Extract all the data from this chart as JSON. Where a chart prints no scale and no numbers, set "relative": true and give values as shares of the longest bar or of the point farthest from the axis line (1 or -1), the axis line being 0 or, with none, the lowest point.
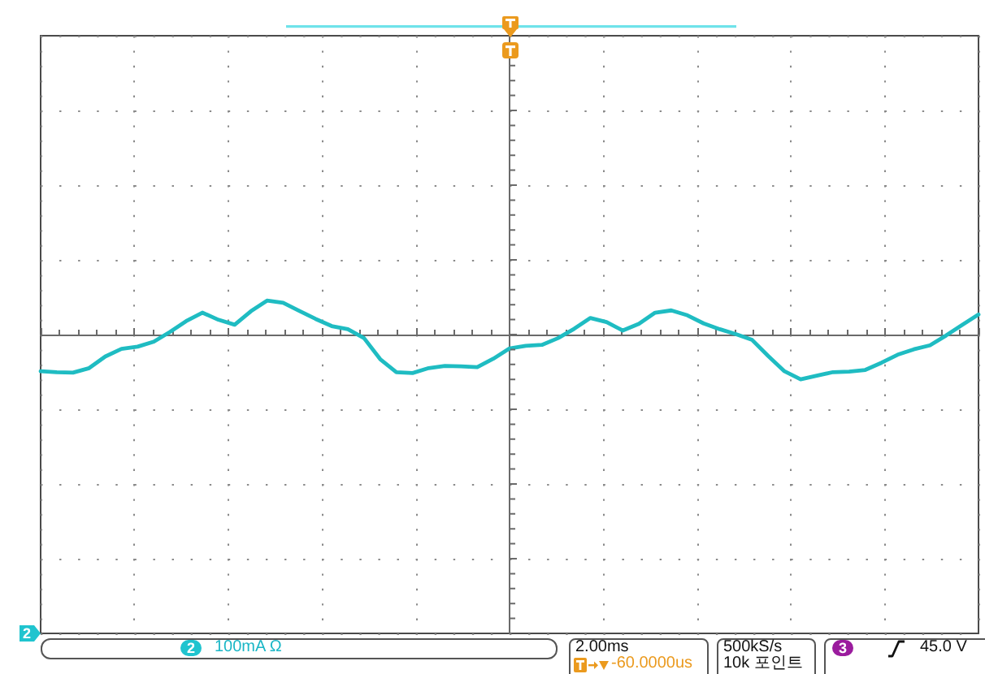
{
  "chart_data": {
    "type": "line",
    "relative": true,
    "categories": [
      null,
      null,
      null,
      null,
      null,
      null,
      null,
      null,
      null,
      null,
      null,
      null,
      null,
      null,
      null,
      null,
      null,
      null,
      null,
      null,
      null,
      null,
      null,
      null,
      null,
      null,
      null,
      null,
      null,
      null,
      null,
      null,
      null,
      null,
      null,
      null,
      null,
      null,
      null,
      null,
      null,
      null,
      null,
      null,
      null,
      null,
      null,
      null,
      null,
      null,
      null,
      null,
      null,
      null,
      null,
      null,
      null,
      null,
      null
    ],
    "series": [
      {
        "color": "#1fbcc2",
        "values": [
          -0.82,
          -0.84,
          -0.85,
          -0.75,
          -0.49,
          -0.32,
          -0.27,
          -0.16,
          0.06,
          0.3,
          0.49,
          0.33,
          0.22,
          0.52,
          0.76,
          0.71,
          0.53,
          0.35,
          0.19,
          0.12,
          -0.08,
          -0.55,
          -0.84,
          -0.86,
          -0.75,
          -0.7,
          -0.71,
          -0.73,
          -0.54,
          -0.31,
          -0.25,
          -0.23,
          -0.08,
          0.13,
          0.37,
          0.28,
          0.09,
          0.24,
          0.49,
          0.54,
          0.43,
          0.25,
          0.12,
          0.01,
          -0.12,
          -0.48,
          -0.82,
          -1,
          -0.92,
          -0.84,
          -0.83,
          -0.79,
          -0.63,
          -0.45,
          -0.33,
          -0.24,
          -0.02,
          0.22,
          0.45
        ]
      }
    ],
    "grid": true,
    "annotations": [
      "2",
      "2",
      "100mA Ω",
      "2.00ms",
      "-60.0000us",
      "500kS/s",
      "10k 포인트",
      "3",
      "45.0 V"
    ]
  }
}
